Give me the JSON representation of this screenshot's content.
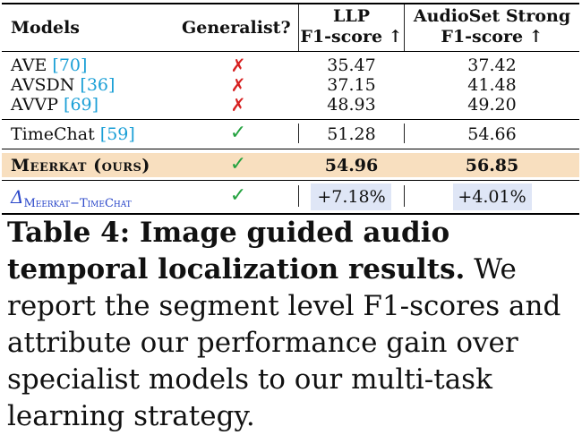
{
  "table": {
    "headers": {
      "models": "Models",
      "generalist": "Generalist?",
      "llp_line1": "LLP",
      "llp_line2": "F1-score ↑",
      "as_line1": "AudioSet Strong",
      "as_line2": "F1-score ↑"
    },
    "rows": [
      {
        "name": "AVE ",
        "cite": "[70]",
        "generalist": "✗",
        "llp": "35.47",
        "audioset": "37.42"
      },
      {
        "name": "AVSDN ",
        "cite": "[36]",
        "generalist": "✗",
        "llp": "37.15",
        "audioset": "41.48"
      },
      {
        "name": "AVVP ",
        "cite": "[69]",
        "generalist": "✗",
        "llp": "48.93",
        "audioset": "49.20"
      },
      {
        "name": "TimeChat ",
        "cite": "[59]",
        "generalist": "✓",
        "llp": "51.28",
        "audioset": "54.66"
      },
      {
        "name": "Meerkat (ours)",
        "cite": "",
        "generalist": "✓",
        "llp": "54.96",
        "audioset": "56.85"
      }
    ],
    "delta": {
      "symbol": "Δ",
      "subscript": "Meerkat−TimeChat",
      "generalist": "✓",
      "llp": "+7.18%",
      "audioset": "+4.01%"
    }
  },
  "caption": {
    "label": "Table 4: Image guided audio temporal localization results.",
    "text": " We report the segment level F1-scores and attribute our performance gain over specialist models to our multi-task learning strategy."
  },
  "colors": {
    "highlight_row": "#f8dfbf",
    "delta_box": "#dfe6f6",
    "cross": "#d62020",
    "check": "#23a23f",
    "citation": "#1a9fd6",
    "delta_text": "#2946c9"
  }
}
